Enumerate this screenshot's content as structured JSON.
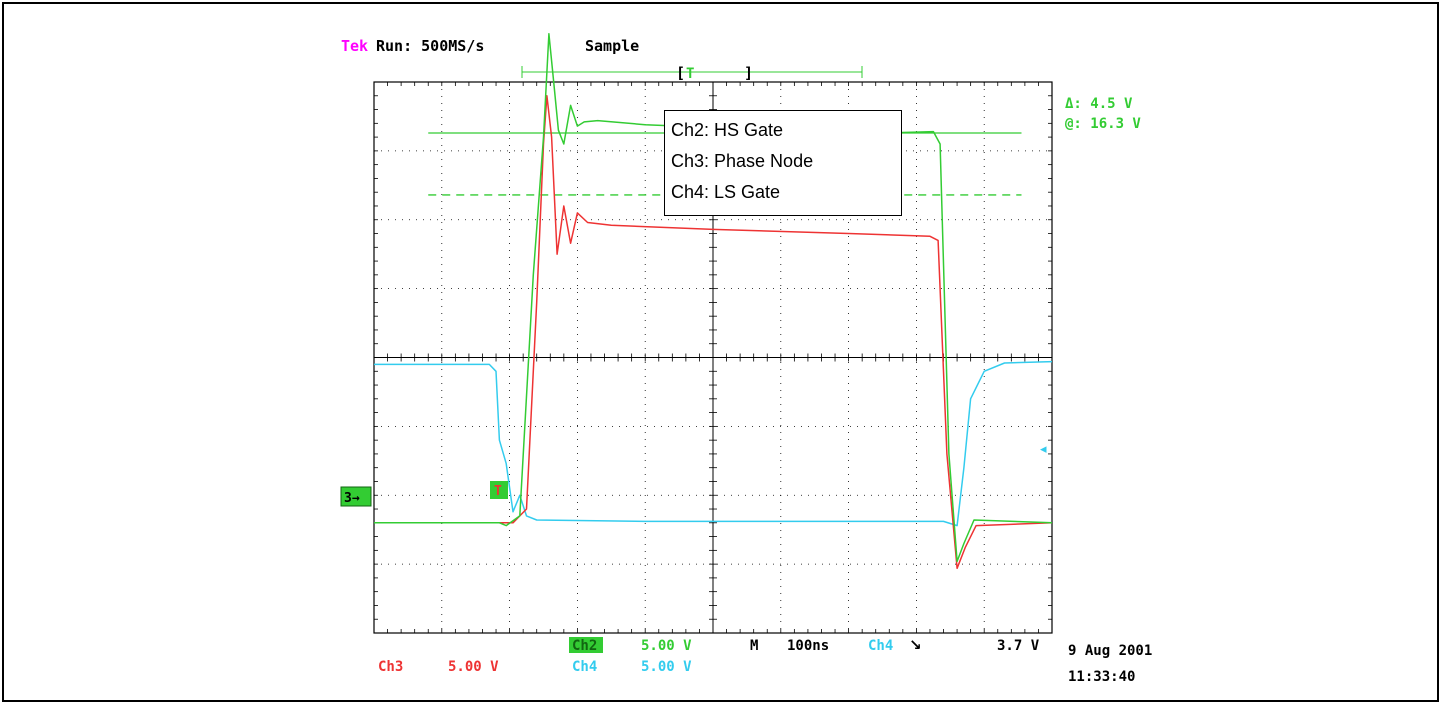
{
  "header": {
    "brand": "Tek",
    "run_label": "Run: 500MS/s",
    "mode": "Sample",
    "trigger_marker_label": "T",
    "bracket_left": "[",
    "bracket_right": "]"
  },
  "cursor_readout": {
    "delta": "Δ: 4.5 V",
    "at": "@: 16.3 V"
  },
  "legend": {
    "items": [
      "Ch2: HS Gate",
      "Ch3: Phase Node",
      "Ch4: LS Gate"
    ]
  },
  "footer": {
    "ch3_label": "Ch3",
    "ch3_scale": "5.00 V",
    "ch2_label": "Ch2",
    "ch2_scale": "5.00 V",
    "ch4_label": "Ch4",
    "ch4_scale": "5.00 V",
    "timebase_label": "M",
    "timebase_value": "100ns",
    "trigger_source": "Ch4",
    "trigger_slope": "↘",
    "trigger_level": "3.7 V",
    "date": "9 Aug 2001",
    "time": "11:33:40"
  },
  "markers": {
    "ground_ref": "3→",
    "trigger_point": "T",
    "ch4_ref": "◂"
  },
  "colors": {
    "ch2": "#33cc33",
    "ch3": "#ee3333",
    "ch4": "#33ccee",
    "tek": "#ff00ff",
    "grid": "#000000"
  },
  "chart_data": {
    "type": "line",
    "x_unit": "ns",
    "y_unit": "V",
    "x_per_div": 100,
    "y_per_div": 5,
    "xlim": [
      0,
      1000
    ],
    "ylim": [
      -20,
      20
    ],
    "grid": true,
    "cursors": [
      {
        "name": "cursor-upper",
        "style": "solid",
        "y": 16.3
      },
      {
        "name": "cursor-lower",
        "style": "dashed",
        "y": 11.8
      }
    ],
    "series": [
      {
        "name": "Ch2: HS Gate",
        "color": "#33cc33",
        "points": [
          [
            0,
            -12
          ],
          [
            185,
            -12
          ],
          [
            195,
            -12.2
          ],
          [
            215,
            -11.5
          ],
          [
            235,
            6
          ],
          [
            250,
            16
          ],
          [
            258,
            23.5
          ],
          [
            265,
            20
          ],
          [
            272,
            16.5
          ],
          [
            280,
            15.5
          ],
          [
            290,
            18.3
          ],
          [
            300,
            16.8
          ],
          [
            310,
            17.1
          ],
          [
            330,
            17.2
          ],
          [
            400,
            16.9
          ],
          [
            500,
            16.7
          ],
          [
            600,
            16.4
          ],
          [
            750,
            16.3
          ],
          [
            825,
            16.4
          ],
          [
            835,
            15.5
          ],
          [
            848,
            -7
          ],
          [
            860,
            -14.8
          ],
          [
            870,
            -13.5
          ],
          [
            885,
            -11.8
          ],
          [
            1000,
            -12
          ]
        ]
      },
      {
        "name": "Ch3: Phase Node",
        "color": "#ee3333",
        "points": [
          [
            0,
            -12
          ],
          [
            195,
            -12
          ],
          [
            205,
            -12
          ],
          [
            225,
            -11
          ],
          [
            240,
            4
          ],
          [
            250,
            15.5
          ],
          [
            255,
            19
          ],
          [
            262,
            16
          ],
          [
            270,
            7.5
          ],
          [
            280,
            11
          ],
          [
            290,
            8.3
          ],
          [
            300,
            10.5
          ],
          [
            315,
            9.8
          ],
          [
            350,
            9.6
          ],
          [
            500,
            9.3
          ],
          [
            700,
            9.0
          ],
          [
            820,
            8.8
          ],
          [
            832,
            8.5
          ],
          [
            845,
            -7
          ],
          [
            860,
            -15.3
          ],
          [
            872,
            -13.8
          ],
          [
            888,
            -12.2
          ],
          [
            1000,
            -12
          ]
        ]
      },
      {
        "name": "Ch4: LS Gate",
        "color": "#33ccee",
        "points": [
          [
            0,
            -0.5
          ],
          [
            170,
            -0.5
          ],
          [
            180,
            -1
          ],
          [
            185,
            -6
          ],
          [
            195,
            -7.7
          ],
          [
            205,
            -11.2
          ],
          [
            215,
            -10
          ],
          [
            225,
            -11.5
          ],
          [
            240,
            -11.8
          ],
          [
            400,
            -11.9
          ],
          [
            600,
            -11.9
          ],
          [
            820,
            -11.9
          ],
          [
            840,
            -11.9
          ],
          [
            860,
            -12.2
          ],
          [
            870,
            -8
          ],
          [
            880,
            -3
          ],
          [
            900,
            -1
          ],
          [
            930,
            -0.4
          ],
          [
            1000,
            -0.3
          ]
        ]
      }
    ]
  }
}
